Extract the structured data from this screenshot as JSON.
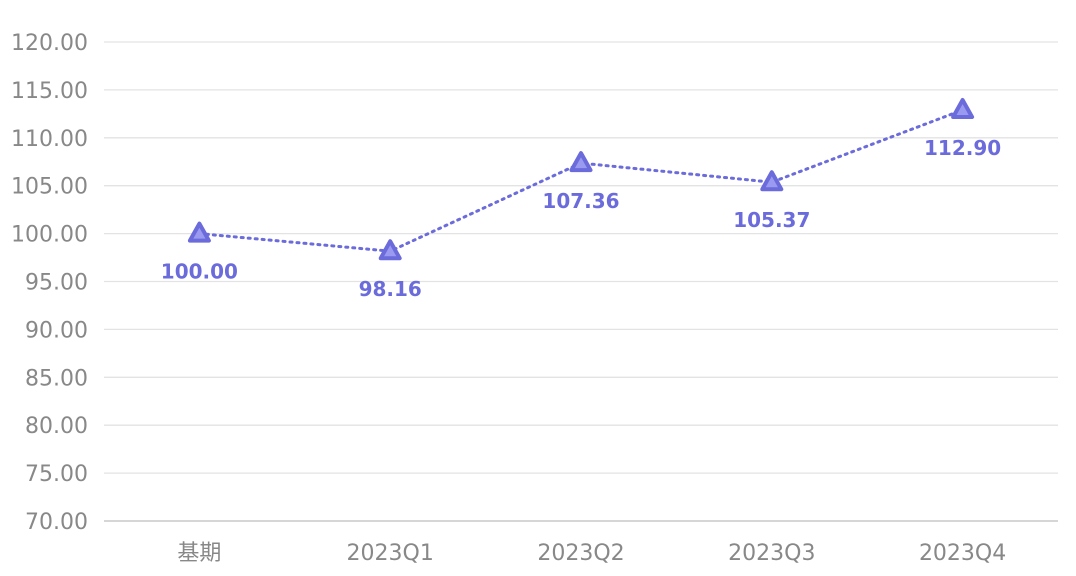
{
  "chart_data": {
    "type": "line",
    "categories": [
      "基期",
      "2023Q1",
      "2023Q2",
      "2023Q3",
      "2023Q4"
    ],
    "series": [
      {
        "values": [
          100.0,
          98.16,
          107.36,
          105.37,
          112.9
        ],
        "labels": [
          "100.00",
          "98.16",
          "107.36",
          "105.37",
          "112.90"
        ],
        "color": "#6B6BDB",
        "marker": "triangle",
        "line_style": "dotted"
      }
    ],
    "yticks": [
      "70.00",
      "75.00",
      "80.00",
      "85.00",
      "90.00",
      "95.00",
      "100.00",
      "105.00",
      "110.00",
      "115.00",
      "120.00"
    ],
    "ylim": [
      70,
      120
    ],
    "grid": true,
    "legend": "none",
    "title": "",
    "xlabel": "",
    "ylabel": ""
  }
}
